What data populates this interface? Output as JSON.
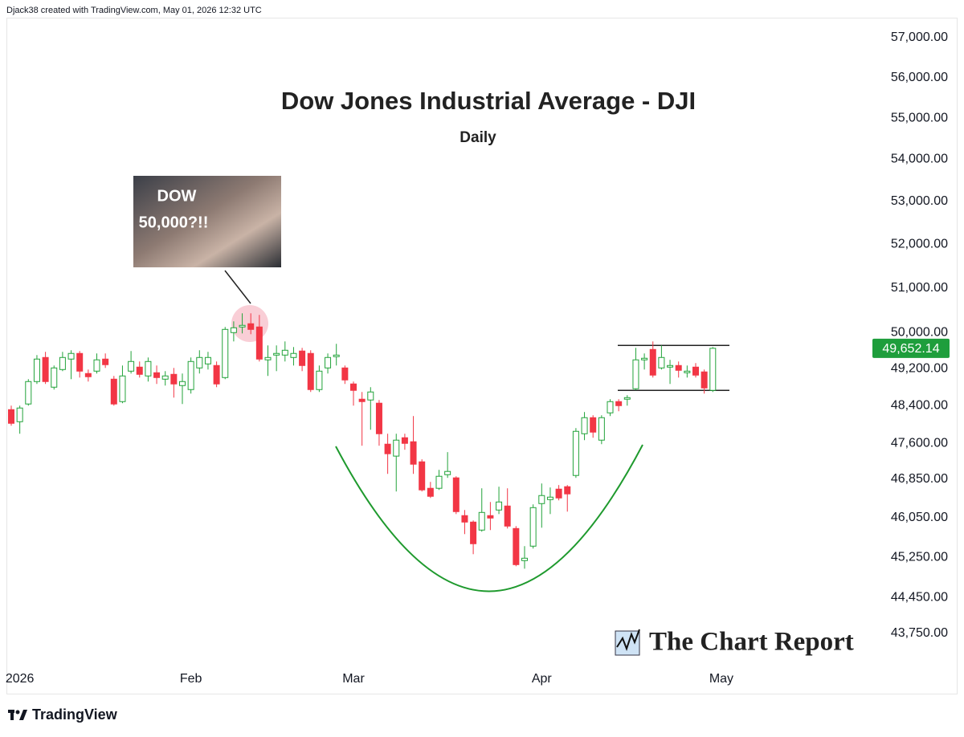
{
  "chart_data": {
    "type": "candlestick",
    "header": "Djack38 created with TradingView.com, May 01, 2026 12:32 UTC",
    "title": "Dow Jones Industrial Average - DJI",
    "subtitle": "Daily",
    "annotation": [
      "DOW",
      "50,000?!!"
    ],
    "watermark": "The Chart Report",
    "footer": "TradingView",
    "log": true,
    "up_color": "#22a33a",
    "down_color": "#f23645",
    "ylim": [
      43140,
      57550
    ],
    "yticks": [
      {
        "value": 57000,
        "label": "57,000.00"
      },
      {
        "value": 56000,
        "label": "56,000.00"
      },
      {
        "value": 55000,
        "label": "55,000.00"
      },
      {
        "value": 54000,
        "label": "54,000.00"
      },
      {
        "value": 53000,
        "label": "53,000.00"
      },
      {
        "value": 52000,
        "label": "52,000.00"
      },
      {
        "value": 51000,
        "label": "51,000.00"
      },
      {
        "value": 50000,
        "label": "50,000.00"
      },
      {
        "value": 49200,
        "label": "49,200.00"
      },
      {
        "value": 48400,
        "label": "48,400.00"
      },
      {
        "value": 47600,
        "label": "47,600.00"
      },
      {
        "value": 46850,
        "label": "46,850.00"
      },
      {
        "value": 46050,
        "label": "46,050.00"
      },
      {
        "value": 45250,
        "label": "45,250.00"
      },
      {
        "value": 44450,
        "label": "44,450.00"
      },
      {
        "value": 43750,
        "label": "43,750.00"
      }
    ],
    "last_price": {
      "value": 49652.14,
      "label": "49,652.14"
    },
    "range_lines": [
      49716,
      48733
    ],
    "categories": [
      null,
      "2026",
      null,
      null,
      null,
      null,
      null,
      null,
      null,
      null,
      null,
      null,
      null,
      null,
      null,
      null,
      null,
      null,
      null,
      null,
      null,
      "Feb",
      null,
      null,
      null,
      null,
      null,
      null,
      null,
      null,
      null,
      null,
      null,
      null,
      null,
      null,
      null,
      null,
      null,
      null,
      "Mar",
      null,
      null,
      null,
      null,
      null,
      null,
      null,
      null,
      null,
      null,
      null,
      null,
      null,
      null,
      null,
      null,
      null,
      null,
      null,
      null,
      null,
      "Apr",
      null,
      null,
      null,
      null,
      null,
      null,
      null,
      null,
      null,
      null,
      null,
      null,
      null,
      null,
      null,
      null,
      null,
      null,
      null,
      null,
      "May"
    ],
    "open": [
      48317,
      48059,
      48439,
      48924,
      49450,
      48802,
      49186,
      49415,
      49539,
      49099,
      49151,
      49415,
      48976,
      48490,
      49151,
      49239,
      49046,
      49116,
      48976,
      49081,
      48837,
      48750,
      49221,
      49309,
      49274,
      49011,
      50000,
      50125,
      50197,
      50125,
      49398,
      49503,
      49503,
      49450,
      49592,
      49539,
      48750,
      49221,
      49468,
      49221,
      48872,
      48542,
      48525,
      48456,
      47582,
      47330,
      47718,
      47633,
      47210,
      46658,
      46658,
      46941,
      46875,
      46095,
      45963,
      45800,
      46095,
      46210,
      46292,
      45832,
      45183,
      45474,
      46342,
      46425,
      46641,
      46691,
      46925,
      47803,
      48145,
      47667,
      48248,
      48490,
      48542,
      48768,
      49398,
      49627,
      49221,
      49239,
      49274,
      49116,
      49239,
      49134,
      48733,
      null
    ],
    "high": [
      48403,
      48403,
      48976,
      49503,
      49574,
      49274,
      49574,
      49609,
      49592,
      49186,
      49539,
      49539,
      49046,
      49274,
      49592,
      49362,
      49450,
      49274,
      49151,
      49221,
      49099,
      49450,
      49609,
      49574,
      49362,
      50125,
      50250,
      50430,
      50430,
      50394,
      49716,
      49716,
      49804,
      49680,
      49662,
      49609,
      49274,
      49539,
      49751,
      49274,
      48924,
      48698,
      48802,
      48525,
      47803,
      47803,
      47803,
      48180,
      47263,
      46791,
      47042,
      47414,
      46908,
      46210,
      45996,
      46658,
      46375,
      46691,
      46658,
      45881,
      45474,
      46326,
      46758,
      46675,
      46725,
      46725,
      47923,
      48266,
      48197,
      48197,
      48542,
      48542,
      48629,
      49662,
      49539,
      49804,
      49716,
      49398,
      49362,
      49274,
      49327,
      49186,
      49680,
      null
    ],
    "low": [
      47974,
      47803,
      48403,
      48872,
      48872,
      48750,
      49151,
      48976,
      49011,
      48924,
      49099,
      49221,
      48403,
      48456,
      49099,
      49011,
      48924,
      48872,
      48837,
      48576,
      48439,
      48663,
      49099,
      49186,
      48802,
      48976,
      49804,
      49982,
      49964,
      49362,
      49046,
      49151,
      49362,
      49274,
      49151,
      48698,
      48698,
      49099,
      49274,
      48872,
      48403,
      47549,
      47888,
      47549,
      46958,
      46592,
      47464,
      46958,
      46592,
      46458,
      46625,
      46875,
      46127,
      45718,
      45312,
      45767,
      45800,
      46127,
      45832,
      45070,
      45021,
      45426,
      45848,
      46127,
      46409,
      46177,
      46875,
      47667,
      47718,
      47582,
      48180,
      48283,
      48403,
      48733,
      49186,
      49011,
      49186,
      48872,
      49011,
      49011,
      49011,
      48663,
      48698,
      null
    ],
    "close": [
      48025,
      48352,
      48924,
      49415,
      48924,
      49221,
      49450,
      49539,
      49151,
      49029,
      49398,
      49292,
      48439,
      49046,
      49362,
      49081,
      49362,
      49011,
      49046,
      48872,
      48924,
      49362,
      49450,
      49450,
      48872,
      50071,
      50107,
      50161,
      50071,
      49415,
      49450,
      49539,
      49609,
      49539,
      49274,
      48750,
      49151,
      49450,
      49503,
      48959,
      48733,
      48490,
      48698,
      47803,
      47380,
      47667,
      47599,
      47160,
      46625,
      46492,
      46908,
      47009,
      46177,
      45963,
      45523,
      46160,
      46045,
      46375,
      45881,
      45102,
      45231,
      46259,
      46508,
      46475,
      46458,
      46542,
      47854,
      48145,
      47837,
      48145,
      48490,
      48403,
      48576,
      49398,
      49433,
      49064,
      49450,
      49274,
      49169,
      49151,
      49064,
      48785,
      49652.14,
      null
    ]
  }
}
